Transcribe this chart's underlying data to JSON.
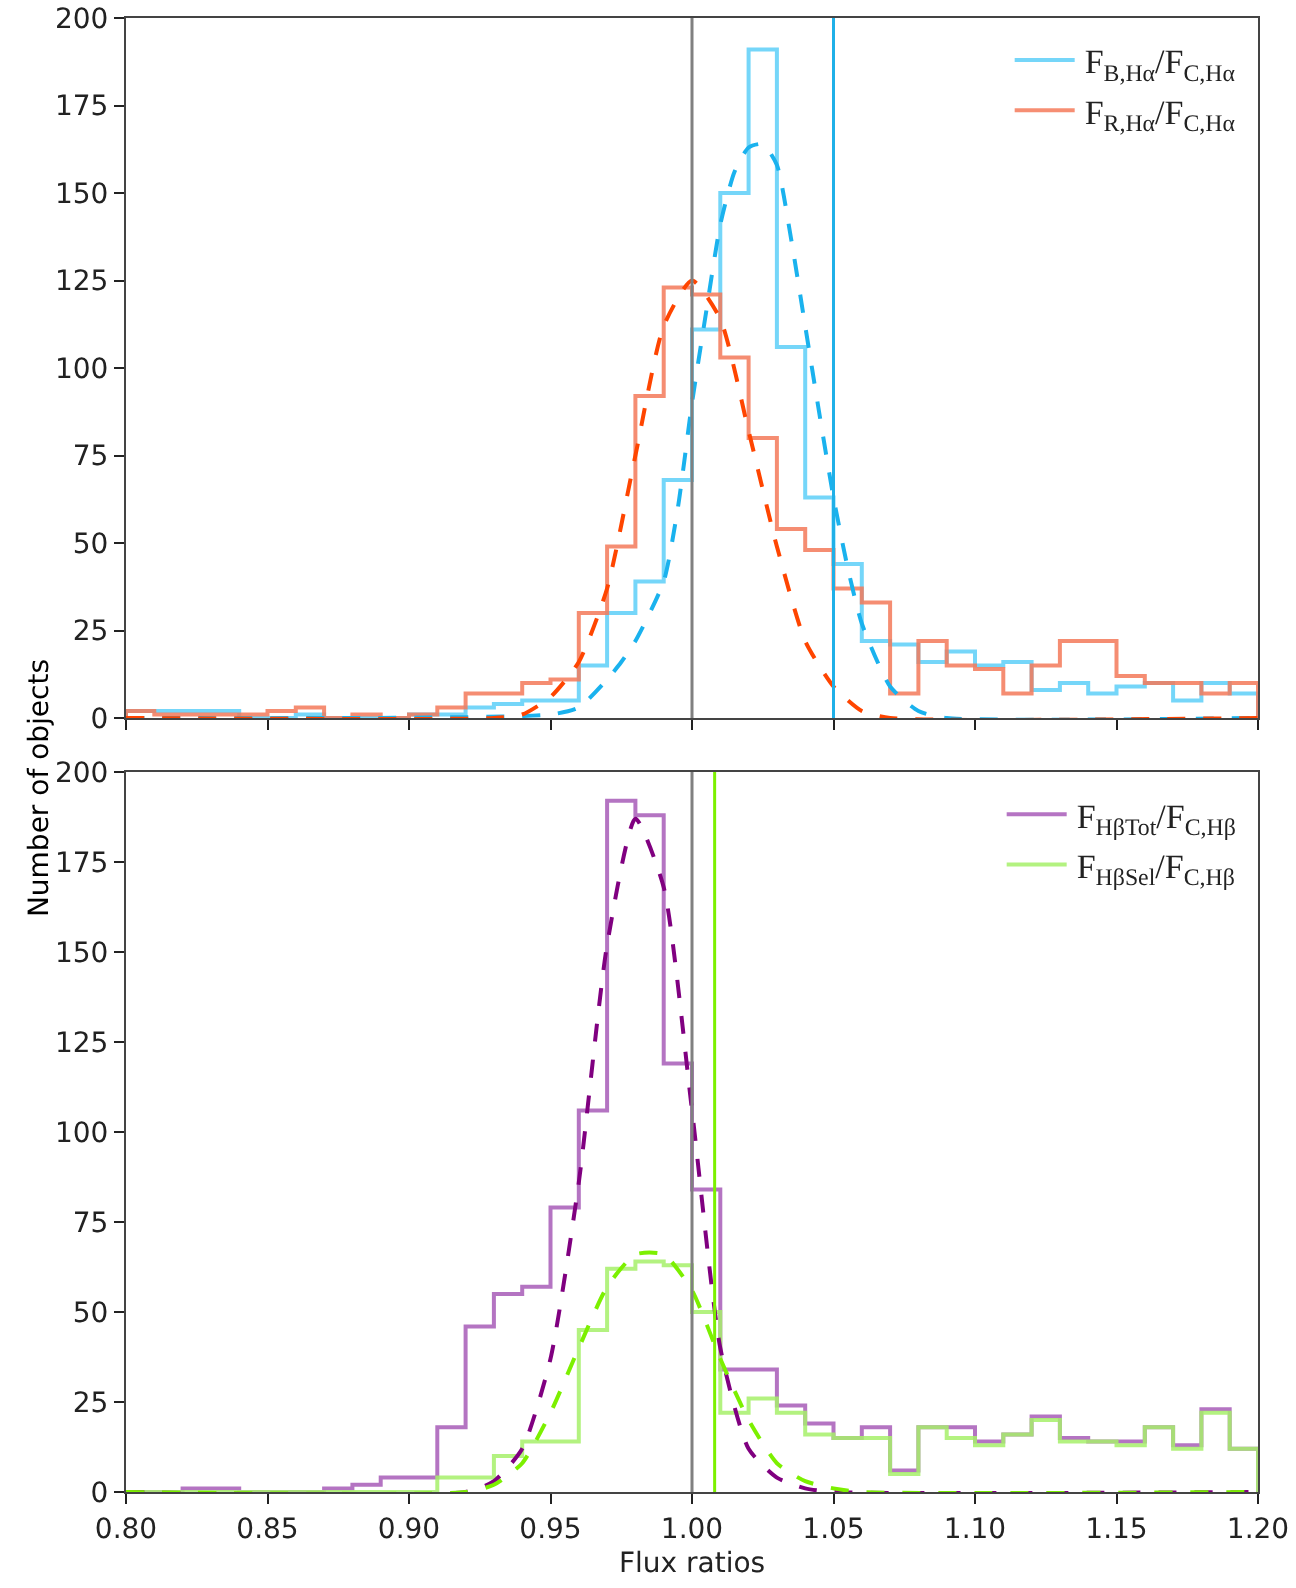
{
  "chart_data": [
    {
      "type": "histogram",
      "ylabel": "Number of objects",
      "bins": [
        0.8,
        0.81,
        0.82,
        0.83,
        0.84,
        0.85,
        0.86,
        0.87,
        0.88,
        0.89,
        0.9,
        0.91,
        0.92,
        0.93,
        0.94,
        0.95,
        0.96,
        0.97,
        0.98,
        0.99,
        1.0,
        1.01,
        1.02,
        1.03,
        1.04,
        1.05,
        1.06,
        1.07,
        1.08,
        1.09,
        1.1,
        1.11,
        1.12,
        1.13,
        1.14,
        1.15,
        1.16,
        1.17,
        1.18,
        1.19,
        1.2
      ],
      "series": [
        {
          "name": "F$_{B,Hα}$/F$_{C,Hα}$",
          "color": "#5dcff8",
          "values": [
            2,
            2,
            2,
            2,
            0,
            0,
            1,
            0,
            0,
            0,
            1,
            1,
            3,
            4,
            5,
            5,
            15,
            30,
            39,
            68,
            111,
            150,
            191,
            106,
            63,
            44,
            22,
            21,
            16,
            19,
            15,
            16,
            8,
            10,
            7,
            9,
            10,
            5,
            10,
            7
          ]
        },
        {
          "name": "F$_{R,Hα}$/F$_{C,Hα}$",
          "color": "#f47a5a",
          "values": [
            2,
            1,
            1,
            1,
            1,
            2,
            3,
            0,
            1,
            0,
            1,
            3,
            7,
            7,
            10,
            11,
            30,
            49,
            92,
            123,
            121,
            103,
            80,
            54,
            48,
            37,
            33,
            7,
            22,
            15,
            14,
            7,
            15,
            22,
            22,
            12,
            10,
            10,
            7,
            10
          ]
        },
        {
          "type": "line",
          "line_style": "dashed",
          "color": "#1ab2ee",
          "x": [
            0.8,
            0.95,
            0.96,
            0.97,
            0.975,
            0.98,
            0.99,
            0.995,
            1.0,
            1.005,
            1.01,
            1.015,
            1.02,
            1.025,
            1.03,
            1.035,
            1.04,
            1.045,
            1.05,
            1.055,
            1.06,
            1.07,
            1.08,
            1.09,
            1.2
          ],
          "values": [
            0,
            1,
            3,
            11,
            16,
            22,
            39,
            60,
            90,
            116,
            141,
            156,
            163,
            164,
            158,
            137,
            112,
            87,
            63,
            43,
            27,
            9,
            2,
            0,
            0
          ]
        },
        {
          "type": "line",
          "line_style": "dashed",
          "color": "#ff4500",
          "x": [
            0.8,
            0.93,
            0.94,
            0.95,
            0.96,
            0.97,
            0.98,
            0.99,
            1.0,
            1.01,
            1.02,
            1.03,
            1.04,
            1.05,
            1.06,
            1.07,
            1.2
          ],
          "values": [
            0,
            0,
            1,
            6,
            16,
            37,
            75,
            112,
            125,
            114,
            82,
            49,
            22,
            9,
            2,
            0,
            0
          ]
        }
      ],
      "ref_lines": [
        {
          "axis": "x",
          "value": 1.0,
          "color": "#808080"
        },
        {
          "axis": "x",
          "value": 1.05,
          "color": "#1fb0e8"
        }
      ],
      "xlim": [
        0.8,
        1.2
      ],
      "xticks": [
        0.8,
        0.85,
        0.9,
        0.95,
        1.0,
        1.05,
        1.1,
        1.15,
        1.2
      ],
      "ylim": [
        0,
        200
      ],
      "yticks": [
        0,
        25,
        50,
        75,
        100,
        125,
        150,
        175,
        200
      ],
      "tick_labels": "y",
      "legend": "top right"
    },
    {
      "type": "histogram",
      "xlabel": "Flux ratios",
      "bins": [
        0.8,
        0.81,
        0.82,
        0.83,
        0.84,
        0.85,
        0.86,
        0.87,
        0.88,
        0.89,
        0.9,
        0.91,
        0.92,
        0.93,
        0.94,
        0.95,
        0.96,
        0.97,
        0.98,
        0.99,
        1.0,
        1.01,
        1.02,
        1.03,
        1.04,
        1.05,
        1.06,
        1.07,
        1.08,
        1.09,
        1.1,
        1.11,
        1.12,
        1.13,
        1.14,
        1.15,
        1.16,
        1.17,
        1.18,
        1.19,
        1.2
      ],
      "series": [
        {
          "name": "F$_{HβTot}$/F$_{C,Hβ}$",
          "color": "#a85cb8",
          "values": [
            0,
            0,
            1,
            1,
            0,
            0,
            0,
            1,
            2,
            4,
            4,
            18,
            46,
            55,
            57,
            79,
            106,
            192,
            188,
            119,
            84,
            34,
            34,
            24,
            19,
            15,
            18,
            6,
            18,
            18,
            14,
            16,
            21,
            15,
            14,
            14,
            18,
            13,
            23,
            12
          ]
        },
        {
          "name": "F$_{HβSel}$/F$_{C,Hβ}$",
          "color": "#a6f06a",
          "values": [
            0,
            0,
            0,
            0,
            0,
            0,
            0,
            0,
            0,
            0,
            0,
            4,
            4,
            10,
            14,
            14,
            45,
            62,
            64,
            63,
            50,
            22,
            26,
            22,
            16,
            15,
            15,
            5,
            18,
            15,
            13,
            16,
            20,
            14,
            14,
            13,
            18,
            12,
            22,
            12
          ]
        },
        {
          "type": "line",
          "line_style": "dashed",
          "color": "#800080",
          "x": [
            0.8,
            0.92,
            0.93,
            0.94,
            0.95,
            0.96,
            0.97,
            0.98,
            0.99,
            1.0,
            1.01,
            1.02,
            1.03,
            1.04,
            1.05,
            1.2
          ],
          "values": [
            0,
            0,
            3,
            12,
            37,
            86,
            152,
            187,
            168,
            106,
            40,
            12,
            4,
            1,
            0,
            0
          ]
        },
        {
          "type": "line",
          "line_style": "dashed",
          "color": "#7cf000",
          "x": [
            0.8,
            0.92,
            0.93,
            0.94,
            0.95,
            0.96,
            0.97,
            0.98,
            0.99,
            1.0,
            1.01,
            1.02,
            1.03,
            1.04,
            1.05,
            1.06,
            1.2
          ],
          "values": [
            0,
            0,
            2,
            8,
            22,
            40,
            57,
            66,
            66,
            56,
            37,
            20,
            8,
            3,
            1,
            0,
            0
          ]
        }
      ],
      "ref_lines": [
        {
          "axis": "x",
          "value": 1.0,
          "color": "#808080"
        },
        {
          "axis": "x",
          "value": 1.008,
          "color": "#7cf000"
        }
      ],
      "xlim": [
        0.8,
        1.2
      ],
      "xticks": [
        {
          "value": 0.8,
          "label": "0.80"
        },
        {
          "value": 0.85,
          "label": "0.85"
        },
        {
          "value": 0.9,
          "label": "0.90"
        },
        {
          "value": 0.95,
          "label": "0.95"
        },
        {
          "value": 1.0,
          "label": "1.00"
        },
        {
          "value": 1.05,
          "label": "1.05"
        },
        {
          "value": 1.1,
          "label": "1.10"
        },
        {
          "value": 1.15,
          "label": "1.15"
        },
        {
          "value": 1.2,
          "label": "1.20"
        }
      ],
      "ylim": [
        0,
        200
      ],
      "yticks": [
        0,
        25,
        50,
        75,
        100,
        125,
        150,
        175,
        200
      ],
      "legend": "top right"
    }
  ]
}
